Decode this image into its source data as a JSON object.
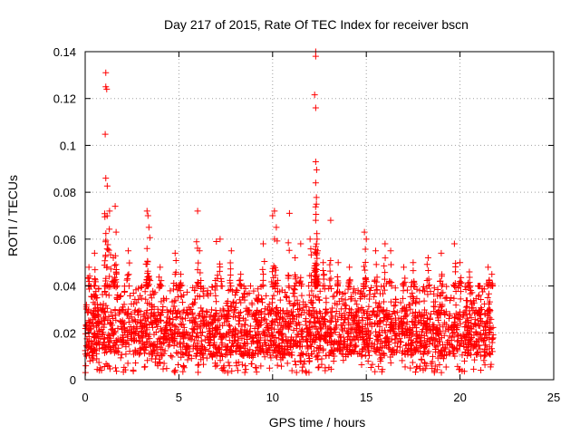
{
  "chart_data": {
    "type": "scatter",
    "title": "Day 217 of 2015, Rate Of TEC Index for receiver bscn",
    "xlabel": "GPS time / hours",
    "ylabel": "ROTI / TECUs",
    "xlim": [
      0,
      25
    ],
    "ylim": [
      0,
      0.14
    ],
    "xticks": [
      0,
      5,
      10,
      15,
      20,
      25
    ],
    "yticks": [
      0,
      0.02,
      0.04,
      0.06,
      0.08,
      0.1,
      0.12,
      0.14
    ],
    "xtick_labels": [
      "0",
      "5",
      "10",
      "15",
      "20",
      "25"
    ],
    "ytick_labels": [
      "0",
      "0.02",
      "0.04",
      "0.06",
      "0.08",
      "0.1",
      "0.12",
      "0.14"
    ],
    "grid": true,
    "marker": "+",
    "color": "#ff0000",
    "series": [
      {
        "name": "ROTI",
        "x": [
          0.2,
          0.5,
          1.1,
          1.1,
          1.15,
          1.1,
          1.3,
          1.6,
          1.65,
          1.5,
          2.3,
          3.3,
          3.35,
          3.4,
          3.3,
          4.0,
          4.8,
          5.1,
          6.0,
          6.1,
          7.0,
          7.2,
          7.8,
          8.3,
          9.5,
          10.1,
          10.0,
          10.2,
          10.9,
          11.2,
          11.5,
          12.0,
          12.3,
          12.3,
          12.3,
          12.3,
          12.3,
          12.3,
          12.3,
          12.35,
          12.4,
          12.7,
          13.1,
          13.5,
          14.1,
          14.9,
          15.0,
          15.5,
          16.0,
          16.3,
          17.0,
          17.5,
          18.3,
          19.0,
          19.7,
          20.0,
          20.5,
          21.0,
          21.5,
          21.7
        ],
        "y": [
          0.048,
          0.054,
          0.131,
          0.125,
          0.124,
          0.086,
          0.072,
          0.074,
          0.063,
          0.052,
          0.055,
          0.072,
          0.07,
          0.065,
          0.056,
          0.048,
          0.054,
          0.045,
          0.072,
          0.055,
          0.059,
          0.06,
          0.055,
          0.045,
          0.058,
          0.072,
          0.07,
          0.065,
          0.071,
          0.052,
          0.058,
          0.06,
          0.14,
          0.138,
          0.116,
          0.093,
          0.084,
          0.068,
          0.054,
          0.047,
          0.055,
          0.05,
          0.068,
          0.05,
          0.048,
          0.063,
          0.06,
          0.055,
          0.058,
          0.055,
          0.048,
          0.05,
          0.052,
          0.054,
          0.058,
          0.05,
          0.046,
          0.04,
          0.048,
          0.045
        ],
        "bulk": {
          "description": "dense band of points",
          "x_range": [
            0,
            21.8
          ],
          "y_range": [
            0.003,
            0.04
          ],
          "y_typical": [
            0.01,
            0.03
          ]
        }
      }
    ]
  }
}
